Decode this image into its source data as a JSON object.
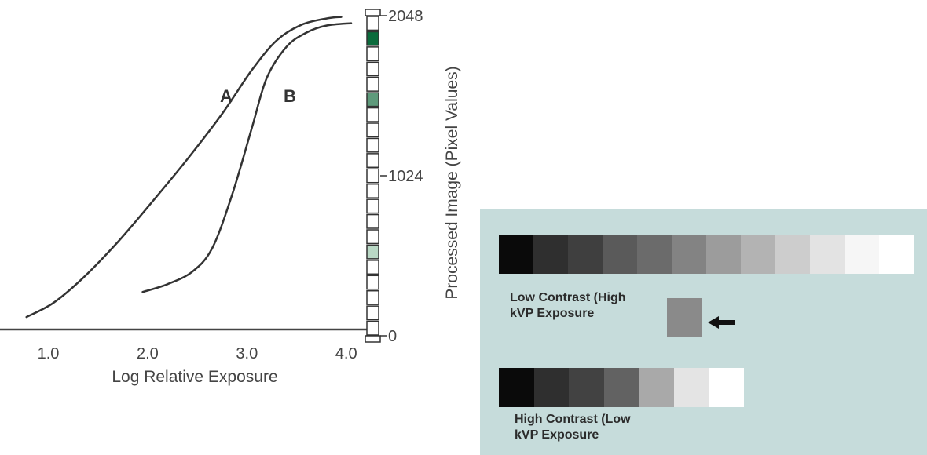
{
  "chart_data": {
    "type": "line",
    "xlabel": "Log Relative Exposure",
    "x_ticks": [
      "1.0",
      "2.0",
      "3.0",
      "4.0"
    ],
    "x_tick_values": [
      1.0,
      2.0,
      3.0,
      4.0
    ],
    "xlim": [
      0.3,
      4.2
    ],
    "ylabel": "Processed Image (Pixel Values)",
    "y_ticks": [
      "0",
      "1024",
      "2048"
    ],
    "y_tick_values": [
      0,
      1024,
      2048
    ],
    "ylim": [
      0,
      2048
    ],
    "series": [
      {
        "name": "A",
        "x": [
          0.78,
          1.05,
          1.35,
          1.7,
          2.05,
          2.4,
          2.75,
          3.05,
          3.3,
          3.55,
          3.8,
          3.95
        ],
        "y": [
          120,
          210,
          370,
          600,
          860,
          1130,
          1420,
          1700,
          1890,
          1990,
          2030,
          2040
        ]
      },
      {
        "name": "B",
        "x": [
          1.95,
          2.2,
          2.45,
          2.65,
          2.85,
          3.05,
          3.2,
          3.4,
          3.6,
          3.8,
          4.05
        ],
        "y": [
          280,
          330,
          410,
          560,
          900,
          1330,
          1650,
          1850,
          1940,
          1985,
          2000
        ]
      }
    ],
    "curve_labels": [
      "A",
      "B"
    ],
    "pixel_scale": {
      "cells": 21,
      "highlighted_cells": [
        {
          "index": 19,
          "color": "#0b6b3c"
        },
        {
          "index": 15,
          "color": "#5e9a7b"
        },
        {
          "index": 5,
          "color": "#b9d8c5"
        }
      ]
    },
    "grid": false
  },
  "contrast_panel": {
    "background": "#c6dcdb",
    "low_contrast": {
      "label": "Low Contrast (High\nkVP Exposure",
      "steps": [
        "#0a0a0a",
        "#2f2f2f",
        "#3f3f3f",
        "#5a5a5a",
        "#6b6b6b",
        "#838383",
        "#9c9c9c",
        "#b3b3b3",
        "#cdcdcd",
        "#e3e3e3",
        "#f6f6f6",
        "#ffffff"
      ]
    },
    "high_contrast": {
      "label": "High Contrast (Low\nkVP Exposure",
      "steps": [
        "#0a0a0a",
        "#2f2f2f",
        "#424242",
        "#626262",
        "#a9a9a9",
        "#e4e4e4",
        "#ffffff"
      ]
    },
    "sample_patch_color": "#8a8a8a",
    "arrow_icon": "left-arrow-icon"
  }
}
